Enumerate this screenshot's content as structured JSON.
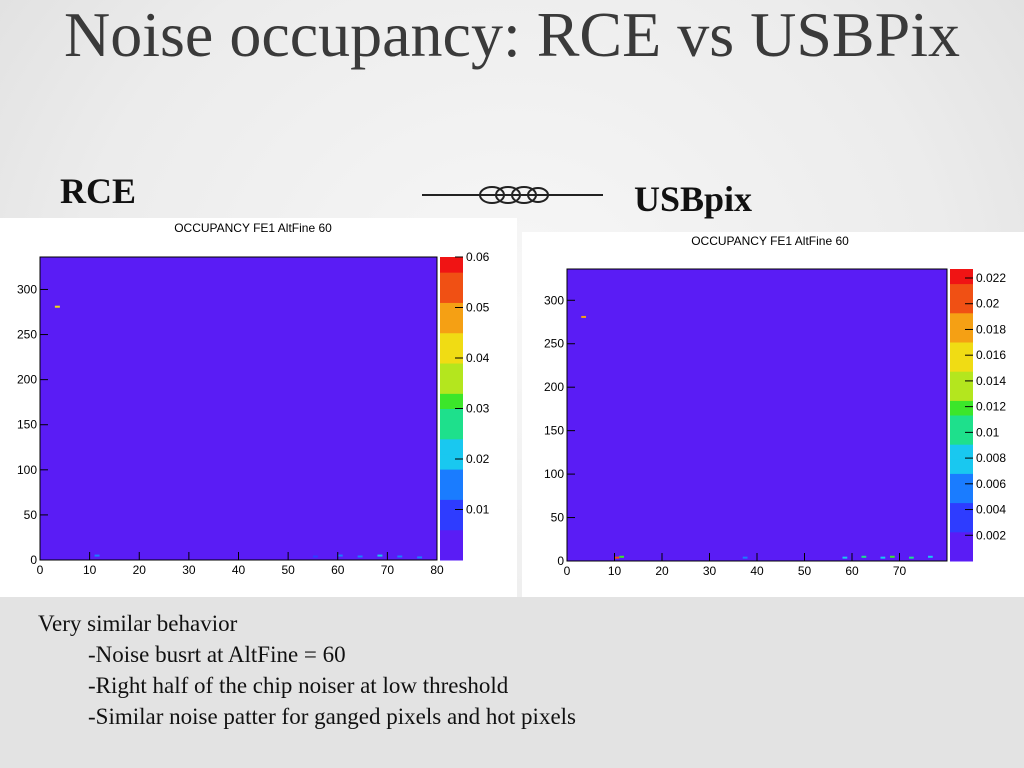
{
  "slide": {
    "title": "Noise occupancy: RCE vs USBPix",
    "left_label": "RCE",
    "right_label": "USBpix",
    "body": [
      "Very similar behavior",
      "-Noise busrt at AltFine = 60",
      "-Right half of the chip noiser at low threshold",
      "-Similar noise patter for ganged pixels and hot pixels"
    ]
  },
  "chart_data": [
    {
      "type": "heatmap",
      "title": "OCCUPANCY FE1 AltFine 60",
      "x": [
        3,
        11,
        55,
        60,
        64,
        68,
        72,
        76
      ],
      "y": [
        280,
        4,
        3,
        4,
        3,
        4,
        3,
        2
      ],
      "values": [
        0.04,
        0.012,
        0.01,
        0.015,
        0.012,
        0.018,
        0.014,
        0.012
      ],
      "xlim": [
        0,
        80
      ],
      "ylim": [
        0,
        336
      ],
      "zlim": [
        0,
        0.06
      ],
      "xticks": [
        0,
        10,
        20,
        30,
        40,
        50,
        60,
        70,
        80
      ],
      "yticks": [
        0,
        50,
        100,
        150,
        200,
        250,
        300
      ],
      "zticks": [
        0.01,
        0.02,
        0.03,
        0.04,
        0.05,
        0.06
      ],
      "colors": [
        "#5a1cf5",
        "#2e3cff",
        "#1a7cff",
        "#19c8f0",
        "#1ee08c",
        "#3ce62a",
        "#b4e61e",
        "#f0dc14",
        "#f5a014",
        "#f05014",
        "#f01414"
      ]
    },
    {
      "type": "heatmap",
      "title": "OCCUPANCY FE1 AltFine 60",
      "x": [
        3,
        10,
        11,
        37,
        58,
        62,
        66,
        68,
        72,
        76
      ],
      "y": [
        280,
        3,
        4,
        3,
        3,
        4,
        3,
        4,
        3,
        4
      ],
      "values": [
        0.018,
        0.02,
        0.012,
        0.006,
        0.008,
        0.01,
        0.008,
        0.012,
        0.01,
        0.008
      ],
      "xlim": [
        0,
        80
      ],
      "ylim": [
        0,
        336
      ],
      "zlim": [
        0,
        0.0227
      ],
      "xticks": [
        0,
        10,
        20,
        30,
        40,
        50,
        60,
        70
      ],
      "yticks": [
        0,
        50,
        100,
        150,
        200,
        250,
        300
      ],
      "zticks": [
        0.002,
        0.004,
        0.006,
        0.008,
        0.01,
        0.012,
        0.014,
        0.016,
        0.018,
        0.02,
        0.022
      ],
      "colors": [
        "#5a1cf5",
        "#2e3cff",
        "#1a7cff",
        "#19c8f0",
        "#1ee08c",
        "#3ce62a",
        "#b4e61e",
        "#f0dc14",
        "#f5a014",
        "#f05014",
        "#f01414"
      ]
    }
  ]
}
